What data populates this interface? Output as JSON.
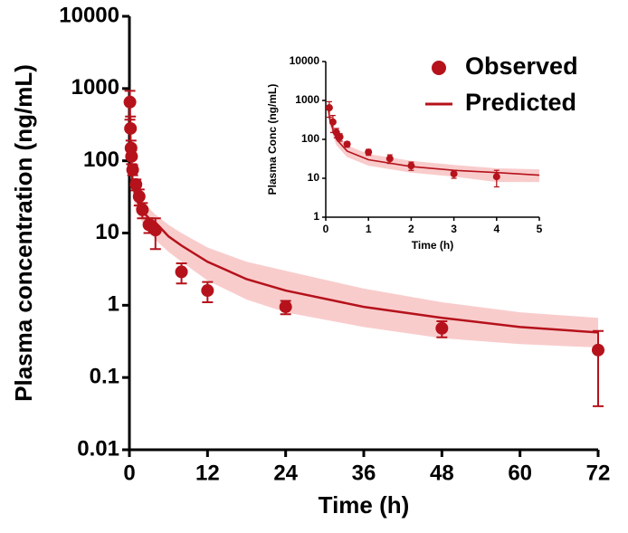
{
  "chart_data": [
    {
      "type": "scatter",
      "log_y": true,
      "legend": "upper right",
      "xlabel": "Time (h)",
      "ylabel": "Plasma concentration (ng/mL)",
      "xlim": [
        0,
        72
      ],
      "xticks": [
        0,
        12,
        24,
        36,
        48,
        60,
        72
      ],
      "ylim": [
        0.01,
        10000
      ],
      "yticks": [
        0.01,
        0.1,
        1,
        10,
        100,
        1000,
        10000
      ],
      "series": [
        {
          "name": "Observed",
          "color": "#b5121b",
          "band_color": "#f9cccc",
          "x": [
            0.083,
            0.167,
            0.25,
            0.33,
            0.5,
            1,
            1.5,
            2,
            3,
            4,
            8,
            12,
            24,
            48,
            72
          ],
          "values": [
            650,
            280,
            150,
            115,
            75,
            47,
            32,
            21,
            13,
            11,
            2.9,
            1.6,
            0.95,
            0.48,
            0.24
          ],
          "errors": [
            280,
            130,
            40,
            25,
            12,
            8,
            8,
            5,
            3,
            5,
            0.9,
            0.5,
            0.2,
            0.12,
            0.2
          ]
        },
        {
          "name": "Predicted",
          "color": "#b5121b",
          "band_color": "#f9cccc",
          "x": [
            0.05,
            0.1,
            0.25,
            0.5,
            1,
            2,
            3,
            4,
            6,
            8,
            12,
            18,
            24,
            36,
            48,
            60,
            72
          ],
          "values": [
            700,
            300,
            100,
            50,
            30,
            20,
            16,
            14,
            9,
            6.7,
            4,
            2.3,
            1.6,
            0.95,
            0.67,
            0.5,
            0.42
          ],
          "lower": [
            500,
            210,
            70,
            35,
            21,
            14,
            11,
            8,
            5.5,
            4,
            2.2,
            1.2,
            0.8,
            0.5,
            0.35,
            0.29,
            0.26
          ],
          "upper": [
            900,
            400,
            140,
            70,
            42,
            28,
            22,
            18,
            13,
            10,
            6.3,
            4,
            3,
            1.7,
            1.1,
            0.8,
            0.67
          ]
        }
      ]
    },
    {
      "type": "scatter",
      "log_y": true,
      "xlabel": "Time (h)",
      "ylabel": "Plasma Conc (ng/mL)",
      "xlim": [
        0,
        5
      ],
      "xticks": [
        0,
        1,
        2,
        3,
        4,
        5
      ],
      "ylim": [
        1,
        10000
      ],
      "yticks": [
        1,
        10,
        100,
        1000,
        10000
      ],
      "series": [
        {
          "color": "#b5121b",
          "x": [
            0.083,
            0.167,
            0.25,
            0.33,
            0.5,
            1,
            1.5,
            2,
            3,
            4
          ],
          "values": [
            650,
            280,
            150,
            115,
            75,
            47,
            32,
            21,
            13,
            11
          ],
          "errors": [
            280,
            130,
            40,
            25,
            12,
            8,
            8,
            5,
            3,
            5
          ]
        },
        {
          "color": "#b5121b",
          "band_color": "#f9cccc",
          "x": [
            0.05,
            0.1,
            0.25,
            0.5,
            1,
            2,
            3,
            4,
            5
          ],
          "values": [
            700,
            300,
            100,
            50,
            30,
            20,
            16,
            14,
            12
          ],
          "lower": [
            500,
            210,
            70,
            35,
            21,
            14,
            11,
            8,
            8
          ],
          "upper": [
            900,
            400,
            140,
            70,
            42,
            28,
            22,
            18,
            17
          ]
        }
      ]
    }
  ]
}
